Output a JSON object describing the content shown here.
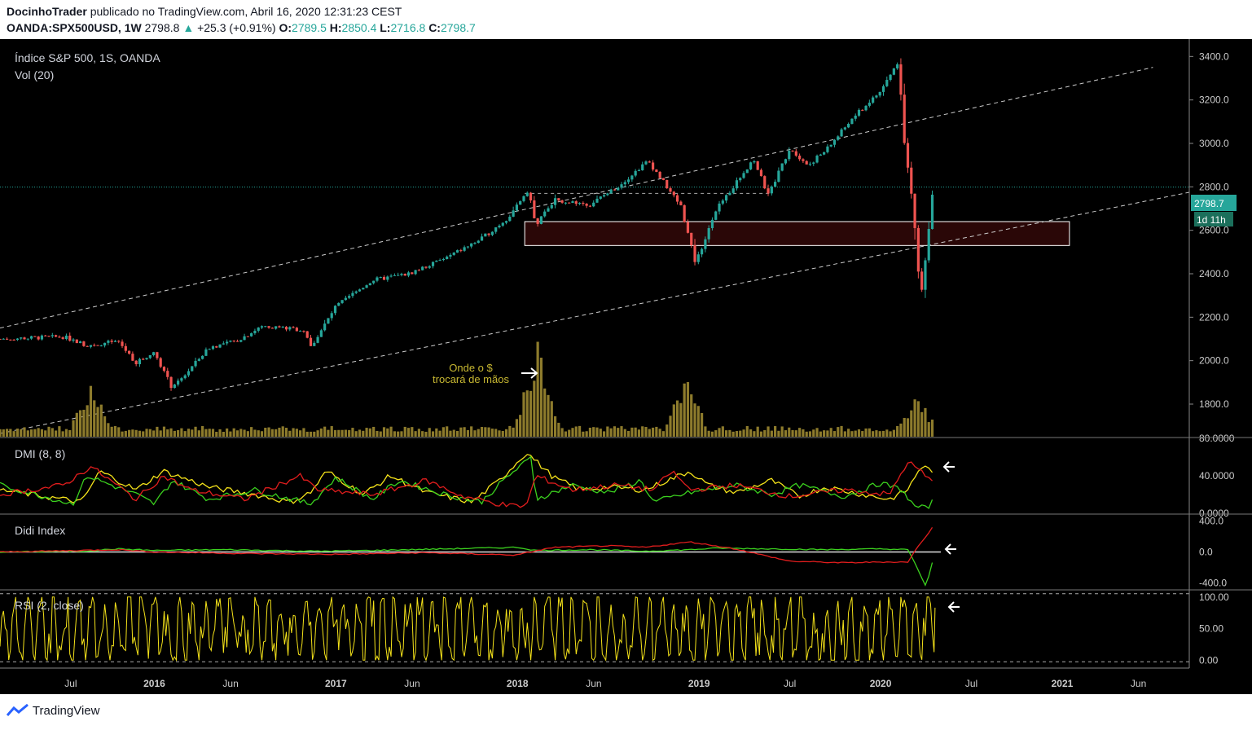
{
  "header": {
    "author": "DocinhoTrader",
    "published": "publicado no TradingView.com, Abril 16, 2020 12:31:23 CEST",
    "symbol": "OANDA:SPX500USD, 1W",
    "last": "2798.8",
    "change_arrow": "▲",
    "change": "+25.3 (+0.91%)",
    "o_label": "O:",
    "o_val": "2789.5",
    "h_label": "H:",
    "h_val": "2850.4",
    "l_label": "L:",
    "l_val": "2716.8",
    "c_label": "C:",
    "c_val": "2798.7"
  },
  "panes": {
    "main_title": "Índice S&P 500, 1S, OANDA",
    "vol_title": "Vol (20)",
    "dmi_title": "DMI (8, 8)",
    "didi_title": "Didi Index",
    "rsi_title": "RSI (2, close)"
  },
  "annotation": {
    "line1": "Onde o $",
    "line2": "trocará de mãos"
  },
  "price_badge": "2798.7",
  "time_badge": "1d 11h",
  "footer": {
    "brand": "TradingView"
  },
  "colors": {
    "up": "#26a69a",
    "down": "#ef5350",
    "volume": "#8d7b2c",
    "dmi_yellow": "#f5e31a",
    "green": "#3bd11e",
    "red": "#e21d1d",
    "annotation": "#c8b832",
    "badge": "#26a69a"
  },
  "chart_data": [
    {
      "type": "candlestick",
      "title": "Índice S&P 500, 1S, OANDA",
      "ylim": [
        1650,
        3480
      ],
      "y_ticks": [
        1800,
        2000,
        2200,
        2400,
        2600,
        2800,
        3000,
        3200,
        3400
      ],
      "y_tick_labels": [
        "1800.0",
        "2000.0",
        "2200.0",
        "2400.0",
        "2600.0",
        "2800.0",
        "3000.0",
        "3200.0",
        "3400.0"
      ],
      "x_labels": [
        "Jul",
        "2016",
        "Jun",
        "2017",
        "Jun",
        "2018",
        "Jun",
        "2019",
        "Jul",
        "2020",
        "Jul",
        "2021",
        "Jun"
      ],
      "x_label_bold": [
        false,
        true,
        false,
        true,
        false,
        true,
        false,
        true,
        false,
        true,
        false,
        true,
        false
      ],
      "x_label_pos": [
        2015.54,
        2016.0,
        2016.42,
        2017.0,
        2017.42,
        2018.0,
        2018.42,
        2019.0,
        2019.5,
        2020.0,
        2020.5,
        2021.0,
        2021.42
      ],
      "xlim": [
        2015.15,
        2021.7
      ],
      "price_path_x": [
        2015.15,
        2015.5,
        2015.63,
        2015.8,
        2015.9,
        2016.0,
        2016.1,
        2016.3,
        2016.45,
        2016.6,
        2016.83,
        2016.86,
        2017.0,
        2017.2,
        2017.4,
        2017.6,
        2017.8,
        2017.95,
        2018.06,
        2018.1,
        2018.2,
        2018.4,
        2018.55,
        2018.72,
        2018.9,
        2018.98,
        2019.1,
        2019.3,
        2019.38,
        2019.5,
        2019.6,
        2019.7,
        2019.85,
        2020.0,
        2020.1,
        2020.13,
        2020.18,
        2020.22,
        2020.25,
        2020.29
      ],
      "price_path_y": [
        2100,
        2110,
        2070,
        2090,
        1990,
        2040,
        1870,
        2060,
        2090,
        2160,
        2140,
        2060,
        2250,
        2370,
        2400,
        2470,
        2560,
        2660,
        2790,
        2620,
        2740,
        2720,
        2800,
        2920,
        2710,
        2450,
        2700,
        2930,
        2760,
        2980,
        2900,
        2970,
        3120,
        3240,
        3380,
        3000,
        2700,
        2280,
        2500,
        2798.7
      ],
      "last_price": 2798.7,
      "zone": {
        "low": 2530,
        "high": 2640,
        "from": 2018.04,
        "to": 2021.04
      },
      "channel_upper": {
        "x1": 2015.15,
        "y1": 2150,
        "x2": 2021.5,
        "y2": 3350
      },
      "channel_lower": {
        "x1": 2015.15,
        "y1": 1665,
        "x2": 2021.7,
        "y2": 2775
      },
      "dashed_levels": [
        {
          "y": 2770,
          "from": 2018.04,
          "to": 2019.4
        }
      ]
    },
    {
      "type": "bar",
      "title": "Vol (20)",
      "spikes": [
        {
          "x": 2015.65,
          "v": 0.58
        },
        {
          "x": 2018.11,
          "v": 1.0
        },
        {
          "x": 2018.93,
          "v": 0.65
        },
        {
          "x": 2020.2,
          "v": 0.45
        }
      ]
    },
    {
      "type": "line",
      "title": "DMI (8, 8)",
      "ylim": [
        0,
        80
      ],
      "y_tick_labels": [
        "0.0000",
        "40.0000",
        "80.0000"
      ],
      "series": [
        {
          "color": "#f5e31a",
          "x": [
            2015.15,
            2015.6,
            2015.7,
            2015.9,
            2016.05,
            2016.3,
            2016.55,
            2016.75,
            2016.86,
            2016.95,
            2017.15,
            2017.3,
            2017.5,
            2017.75,
            2017.9,
            2018.05,
            2018.2,
            2018.35,
            2018.5,
            2018.7,
            2018.95,
            2019.05,
            2019.2,
            2019.4,
            2019.55,
            2019.7,
            2019.9,
            2020.05,
            2020.15,
            2020.22,
            2020.3
          ],
          "y": [
            25,
            12,
            45,
            25,
            45,
            28,
            20,
            12,
            22,
            45,
            20,
            40,
            22,
            12,
            35,
            65,
            38,
            25,
            28,
            25,
            45,
            30,
            22,
            35,
            18,
            28,
            20,
            15,
            25,
            50,
            45
          ]
        },
        {
          "color": "#3bd11e",
          "x": [
            2015.15,
            2015.55,
            2015.63,
            2015.9,
            2016.0,
            2016.1,
            2016.3,
            2016.55,
            2016.86,
            2017.0,
            2017.2,
            2017.35,
            2017.6,
            2017.8,
            2017.95,
            2018.08,
            2018.1,
            2018.3,
            2018.5,
            2018.68,
            2018.75,
            2018.95,
            2019.2,
            2019.4,
            2019.55,
            2019.8,
            2020.0,
            2020.12,
            2020.18,
            2020.25,
            2020.3
          ],
          "y": [
            30,
            10,
            40,
            20,
            10,
            35,
            15,
            25,
            10,
            38,
            15,
            35,
            20,
            12,
            40,
            60,
            15,
            30,
            22,
            35,
            12,
            22,
            30,
            20,
            30,
            18,
            32,
            25,
            8,
            5,
            15
          ]
        },
        {
          "color": "#e21d1d",
          "x": [
            2015.15,
            2015.5,
            2015.65,
            2015.9,
            2016.05,
            2016.2,
            2016.5,
            2016.8,
            2016.9,
            2017.2,
            2017.5,
            2017.7,
            2017.95,
            2018.05,
            2018.1,
            2018.3,
            2018.55,
            2018.75,
            2018.85,
            2018.95,
            2019.2,
            2019.5,
            2019.8,
            2020.05,
            2020.15,
            2020.22,
            2020.3
          ],
          "y": [
            20,
            30,
            50,
            15,
            40,
            25,
            15,
            40,
            25,
            20,
            35,
            18,
            8,
            8,
            40,
            25,
            30,
            25,
            45,
            25,
            30,
            18,
            25,
            20,
            55,
            45,
            30
          ]
        }
      ]
    },
    {
      "type": "line",
      "title": "Didi Index",
      "ylim": [
        -480,
        480
      ],
      "y_tick_labels": [
        "-400.0",
        "0.0",
        "400.0"
      ],
      "series": [
        {
          "color": "#3bd11e",
          "x": [
            2015.15,
            2015.6,
            2015.8,
            2016.0,
            2016.4,
            2016.9,
            2017.2,
            2017.6,
            2018.0,
            2018.1,
            2018.4,
            2018.7,
            2018.95,
            2019.1,
            2019.4,
            2019.7,
            2020.0,
            2020.15,
            2020.2,
            2020.25,
            2020.3
          ],
          "y": [
            0,
            10,
            40,
            20,
            30,
            10,
            20,
            40,
            60,
            20,
            30,
            10,
            30,
            50,
            40,
            30,
            40,
            30,
            -200,
            -450,
            0
          ]
        },
        {
          "color": "#e21d1d",
          "x": [
            2015.15,
            2015.8,
            2016.0,
            2016.5,
            2017.0,
            2017.5,
            2018.0,
            2018.05,
            2018.2,
            2018.5,
            2018.7,
            2018.95,
            2019.2,
            2019.5,
            2019.8,
            2020.0,
            2020.15,
            2020.2,
            2020.3
          ],
          "y": [
            0,
            30,
            0,
            -20,
            -30,
            -10,
            -40,
            -10,
            60,
            80,
            60,
            130,
            40,
            -120,
            -140,
            -130,
            -130,
            50,
            360
          ]
        }
      ]
    },
    {
      "type": "line",
      "title": "RSI (2, close)",
      "ylim": [
        -10,
        110
      ],
      "y_tick_labels": [
        "0.00",
        "50.00",
        "100.00"
      ],
      "series": [
        {
          "color": "#f5e31a",
          "x_range": [
            2015.15,
            2020.3
          ],
          "last": 83
        }
      ]
    }
  ]
}
